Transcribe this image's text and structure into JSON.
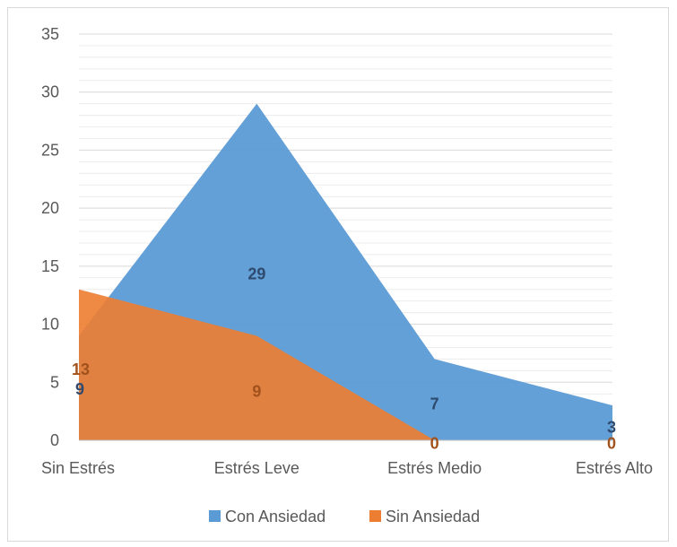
{
  "chart_data": {
    "type": "area",
    "categories": [
      "Sin Estrés",
      "Estrés Leve",
      "Estrés Medio",
      "Estrés Alto"
    ],
    "series": [
      {
        "name": "Con Ansiedad",
        "values": [
          9,
          29,
          7,
          3
        ],
        "color": "#5b9bd5",
        "label_color": "#2e4a6e"
      },
      {
        "name": "Sin Ansiedad",
        "values": [
          13,
          9,
          0,
          0
        ],
        "color": "#ed7d31",
        "label_color": "#a1521c"
      }
    ],
    "ylim": [
      0,
      35
    ],
    "yticks": [
      "0",
      "5",
      "10",
      "15",
      "20",
      "25",
      "30",
      "35"
    ],
    "grid": true,
    "legend": "bottom"
  }
}
